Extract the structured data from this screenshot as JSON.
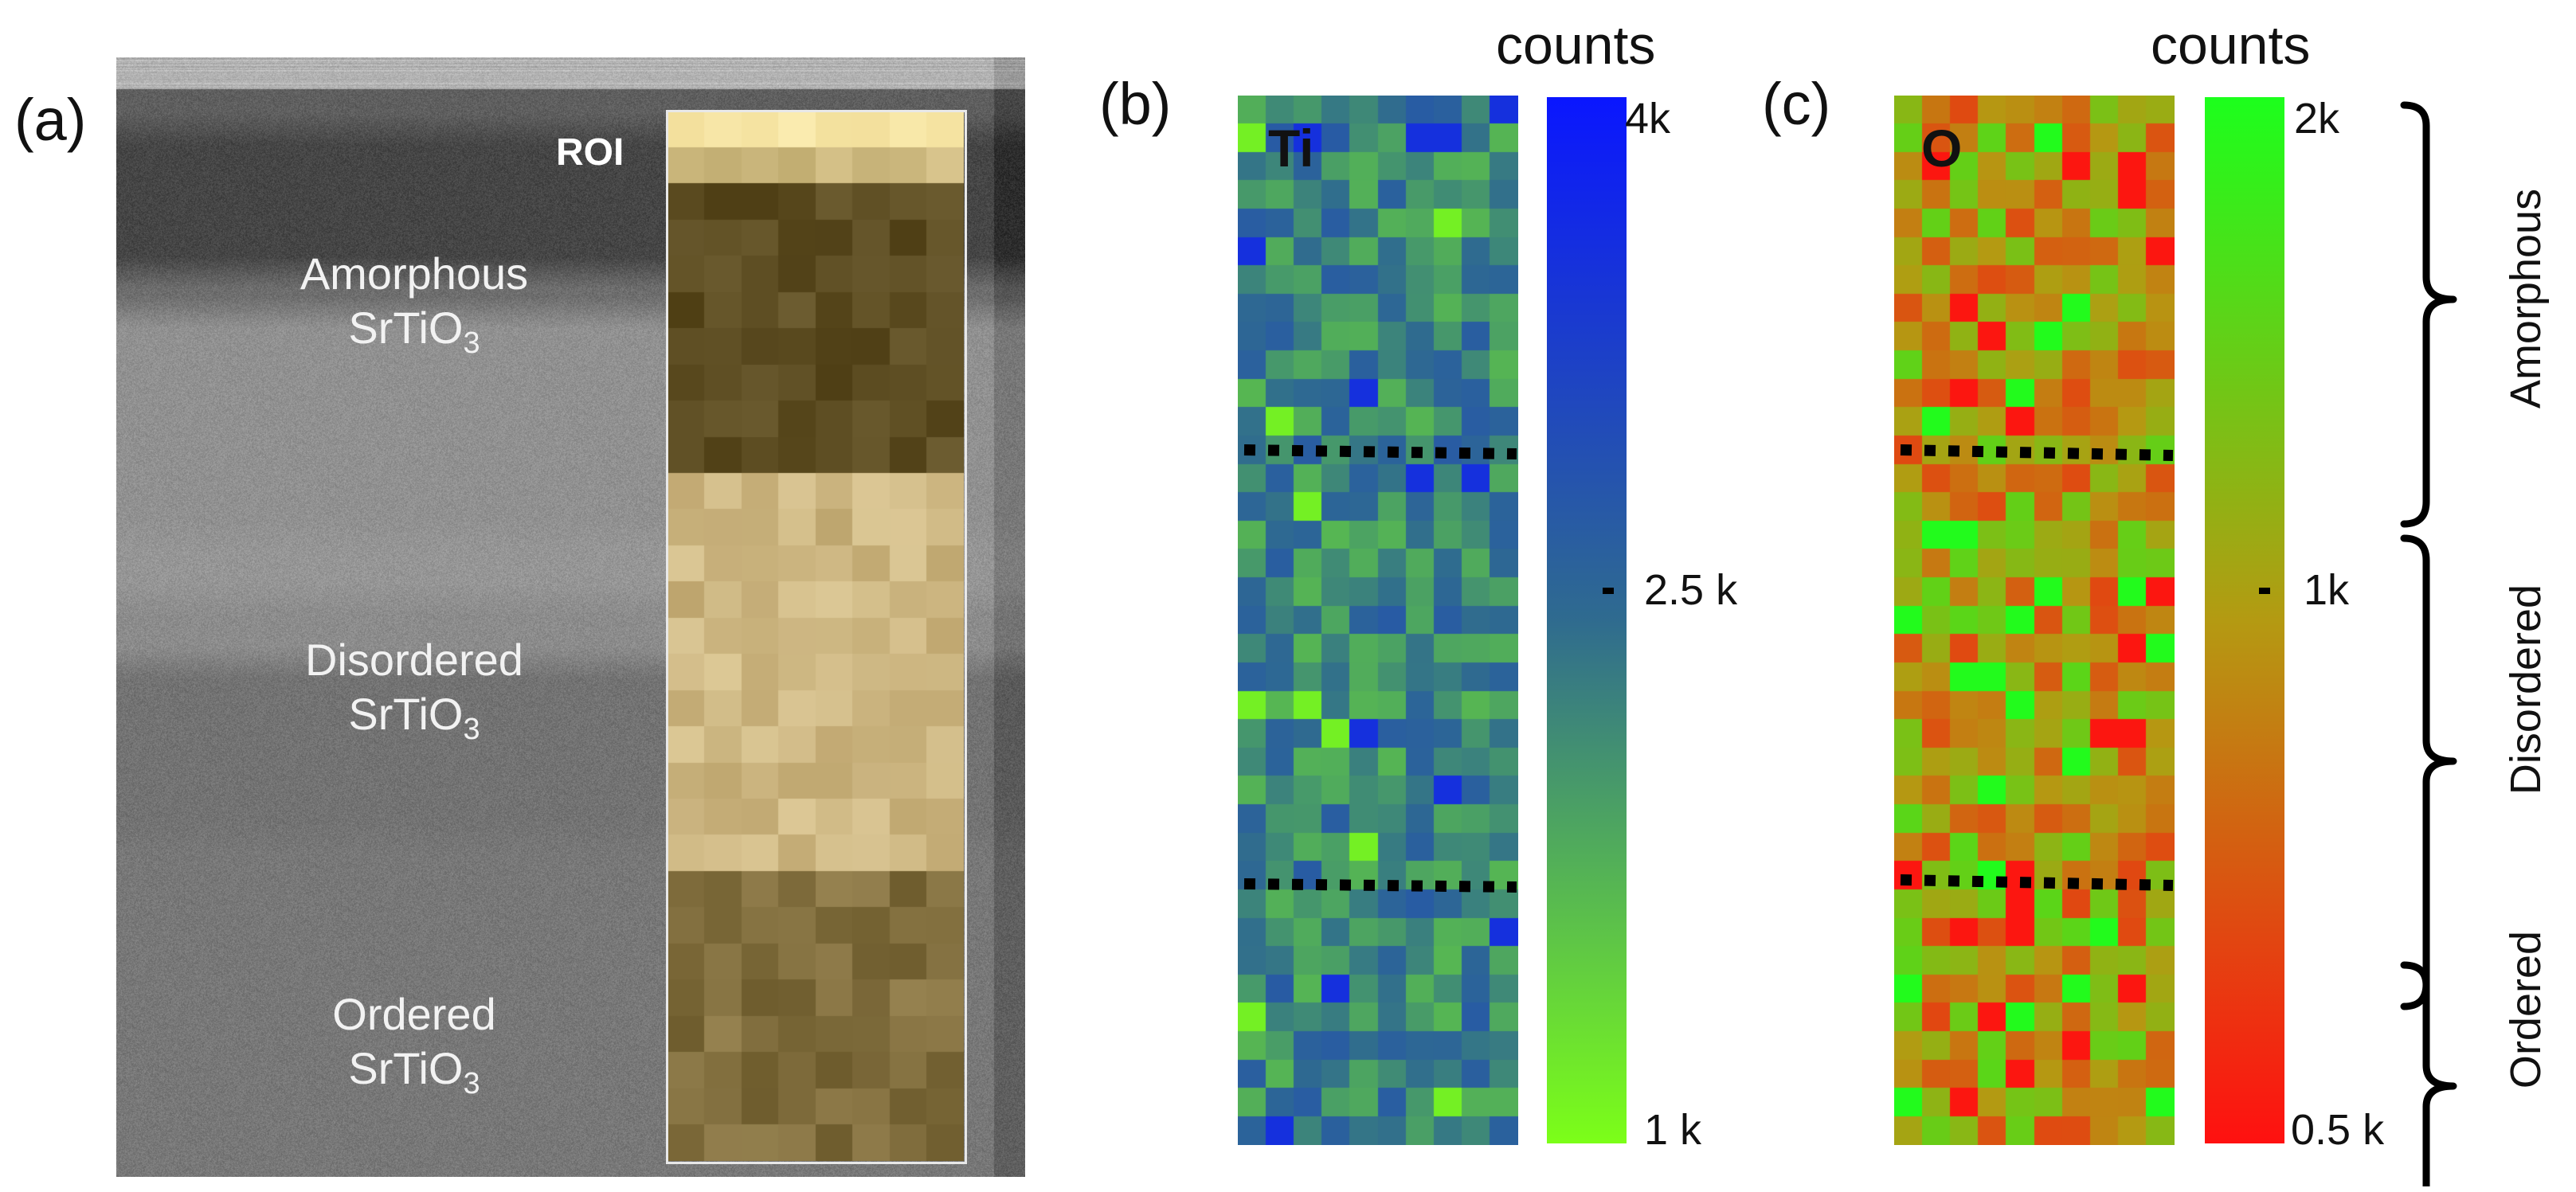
{
  "panels": {
    "a": {
      "label": "(a)",
      "roi_label": "ROI",
      "regions": [
        {
          "name": "Amorphous",
          "formula": "SrTiO",
          "sub": "3"
        },
        {
          "name": "Disordered",
          "formula": "SrTiO",
          "sub": "3"
        },
        {
          "name": "Ordered",
          "formula": "SrTiO",
          "sub": "3"
        }
      ]
    },
    "b": {
      "label": "(b)",
      "element": "Ti",
      "colorbar": {
        "title": "counts",
        "top_label": "4k",
        "mid_label": "2.5 k",
        "bottom_label": "1 k",
        "top_color": "#0a16ff",
        "mid_color": "#2f6b8f",
        "bottom_color": "#7cff18"
      }
    },
    "c": {
      "label": "(c)",
      "element": "O",
      "colorbar": {
        "title": "counts",
        "top_label": "2k",
        "mid_label": "1k",
        "bottom_label": "0.5 k",
        "top_color": "#1cff1c",
        "mid_color": "#b49a12",
        "bottom_color": "#ff1010"
      }
    }
  },
  "braces": [
    "Amorphous",
    "Disordered",
    "Ordered"
  ]
}
